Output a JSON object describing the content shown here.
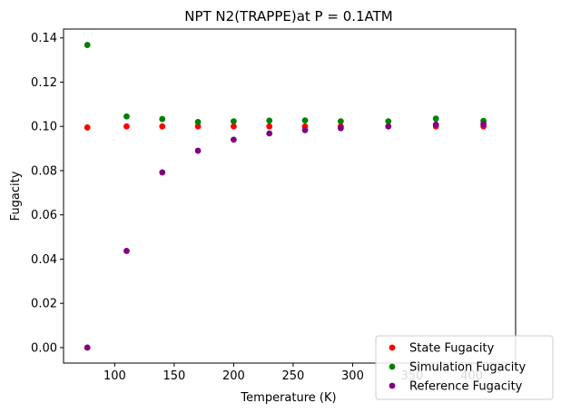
{
  "chart_data": {
    "type": "scatter",
    "title": "NPT N2(TRAPPE)at P = 0.1ATM",
    "xlabel": "Temperature (K)",
    "ylabel": "Fugacity",
    "xlim": [
      57,
      437
    ],
    "ylim": [
      -0.007,
      0.144
    ],
    "xticks": [
      100,
      150,
      200,
      250,
      300,
      350,
      400
    ],
    "yticks": [
      0.0,
      0.02,
      0.04,
      0.06,
      0.08,
      0.1,
      0.12,
      0.14
    ],
    "legend_position": "lower-right",
    "x": [
      77,
      110,
      140,
      170,
      200,
      230,
      260,
      290,
      330,
      370,
      410
    ],
    "series": [
      {
        "name": "State Fugacity",
        "color": "#ff0000",
        "values": [
          0.0995,
          0.1,
          0.1,
          0.1,
          0.1,
          0.1,
          0.1,
          0.1,
          0.1,
          0.1,
          0.1
        ]
      },
      {
        "name": "Simulation Fugacity",
        "color": "#008000",
        "values": [
          0.1368,
          0.1045,
          0.1033,
          0.102,
          0.1023,
          0.1026,
          0.1027,
          0.1023,
          0.1023,
          0.1035,
          0.1025
        ]
      },
      {
        "name": "Reference Fugacity",
        "color": "#800080",
        "values": [
          0.0,
          0.0437,
          0.0792,
          0.089,
          0.094,
          0.0968,
          0.0983,
          0.0992,
          0.1,
          0.1008,
          0.101
        ]
      }
    ]
  }
}
